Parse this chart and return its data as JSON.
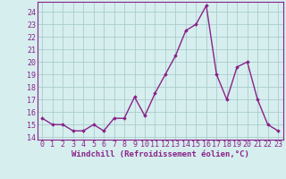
{
  "x": [
    0,
    1,
    2,
    3,
    4,
    5,
    6,
    7,
    8,
    9,
    10,
    11,
    12,
    13,
    14,
    15,
    16,
    17,
    18,
    19,
    20,
    21,
    22,
    23
  ],
  "y": [
    15.5,
    15.0,
    15.0,
    14.5,
    14.5,
    15.0,
    14.5,
    15.5,
    15.5,
    17.2,
    15.7,
    17.5,
    19.0,
    20.5,
    22.5,
    23.0,
    24.5,
    19.0,
    17.0,
    19.6,
    20.0,
    17.0,
    15.0,
    14.5
  ],
  "line_color": "#882288",
  "marker": "D",
  "marker_size": 1.8,
  "linewidth": 1.0,
  "xlabel": "Windchill (Refroidissement éolien,°C)",
  "xlabel_fontsize": 6.5,
  "ytick_vals": [
    14,
    15,
    16,
    17,
    18,
    19,
    20,
    21,
    22,
    23,
    24
  ],
  "xlim": [
    -0.5,
    23.5
  ],
  "ylim": [
    13.8,
    24.8
  ],
  "bg_color": "#d6eeee",
  "grid_color": "#aacccc",
  "tick_fontsize": 6.0,
  "xtick_labels": [
    "0",
    "1",
    "2",
    "3",
    "4",
    "5",
    "6",
    "7",
    "8",
    "9",
    "10",
    "11",
    "12",
    "13",
    "14",
    "15",
    "16",
    "17",
    "18",
    "19",
    "20",
    "21",
    "22",
    "23"
  ]
}
